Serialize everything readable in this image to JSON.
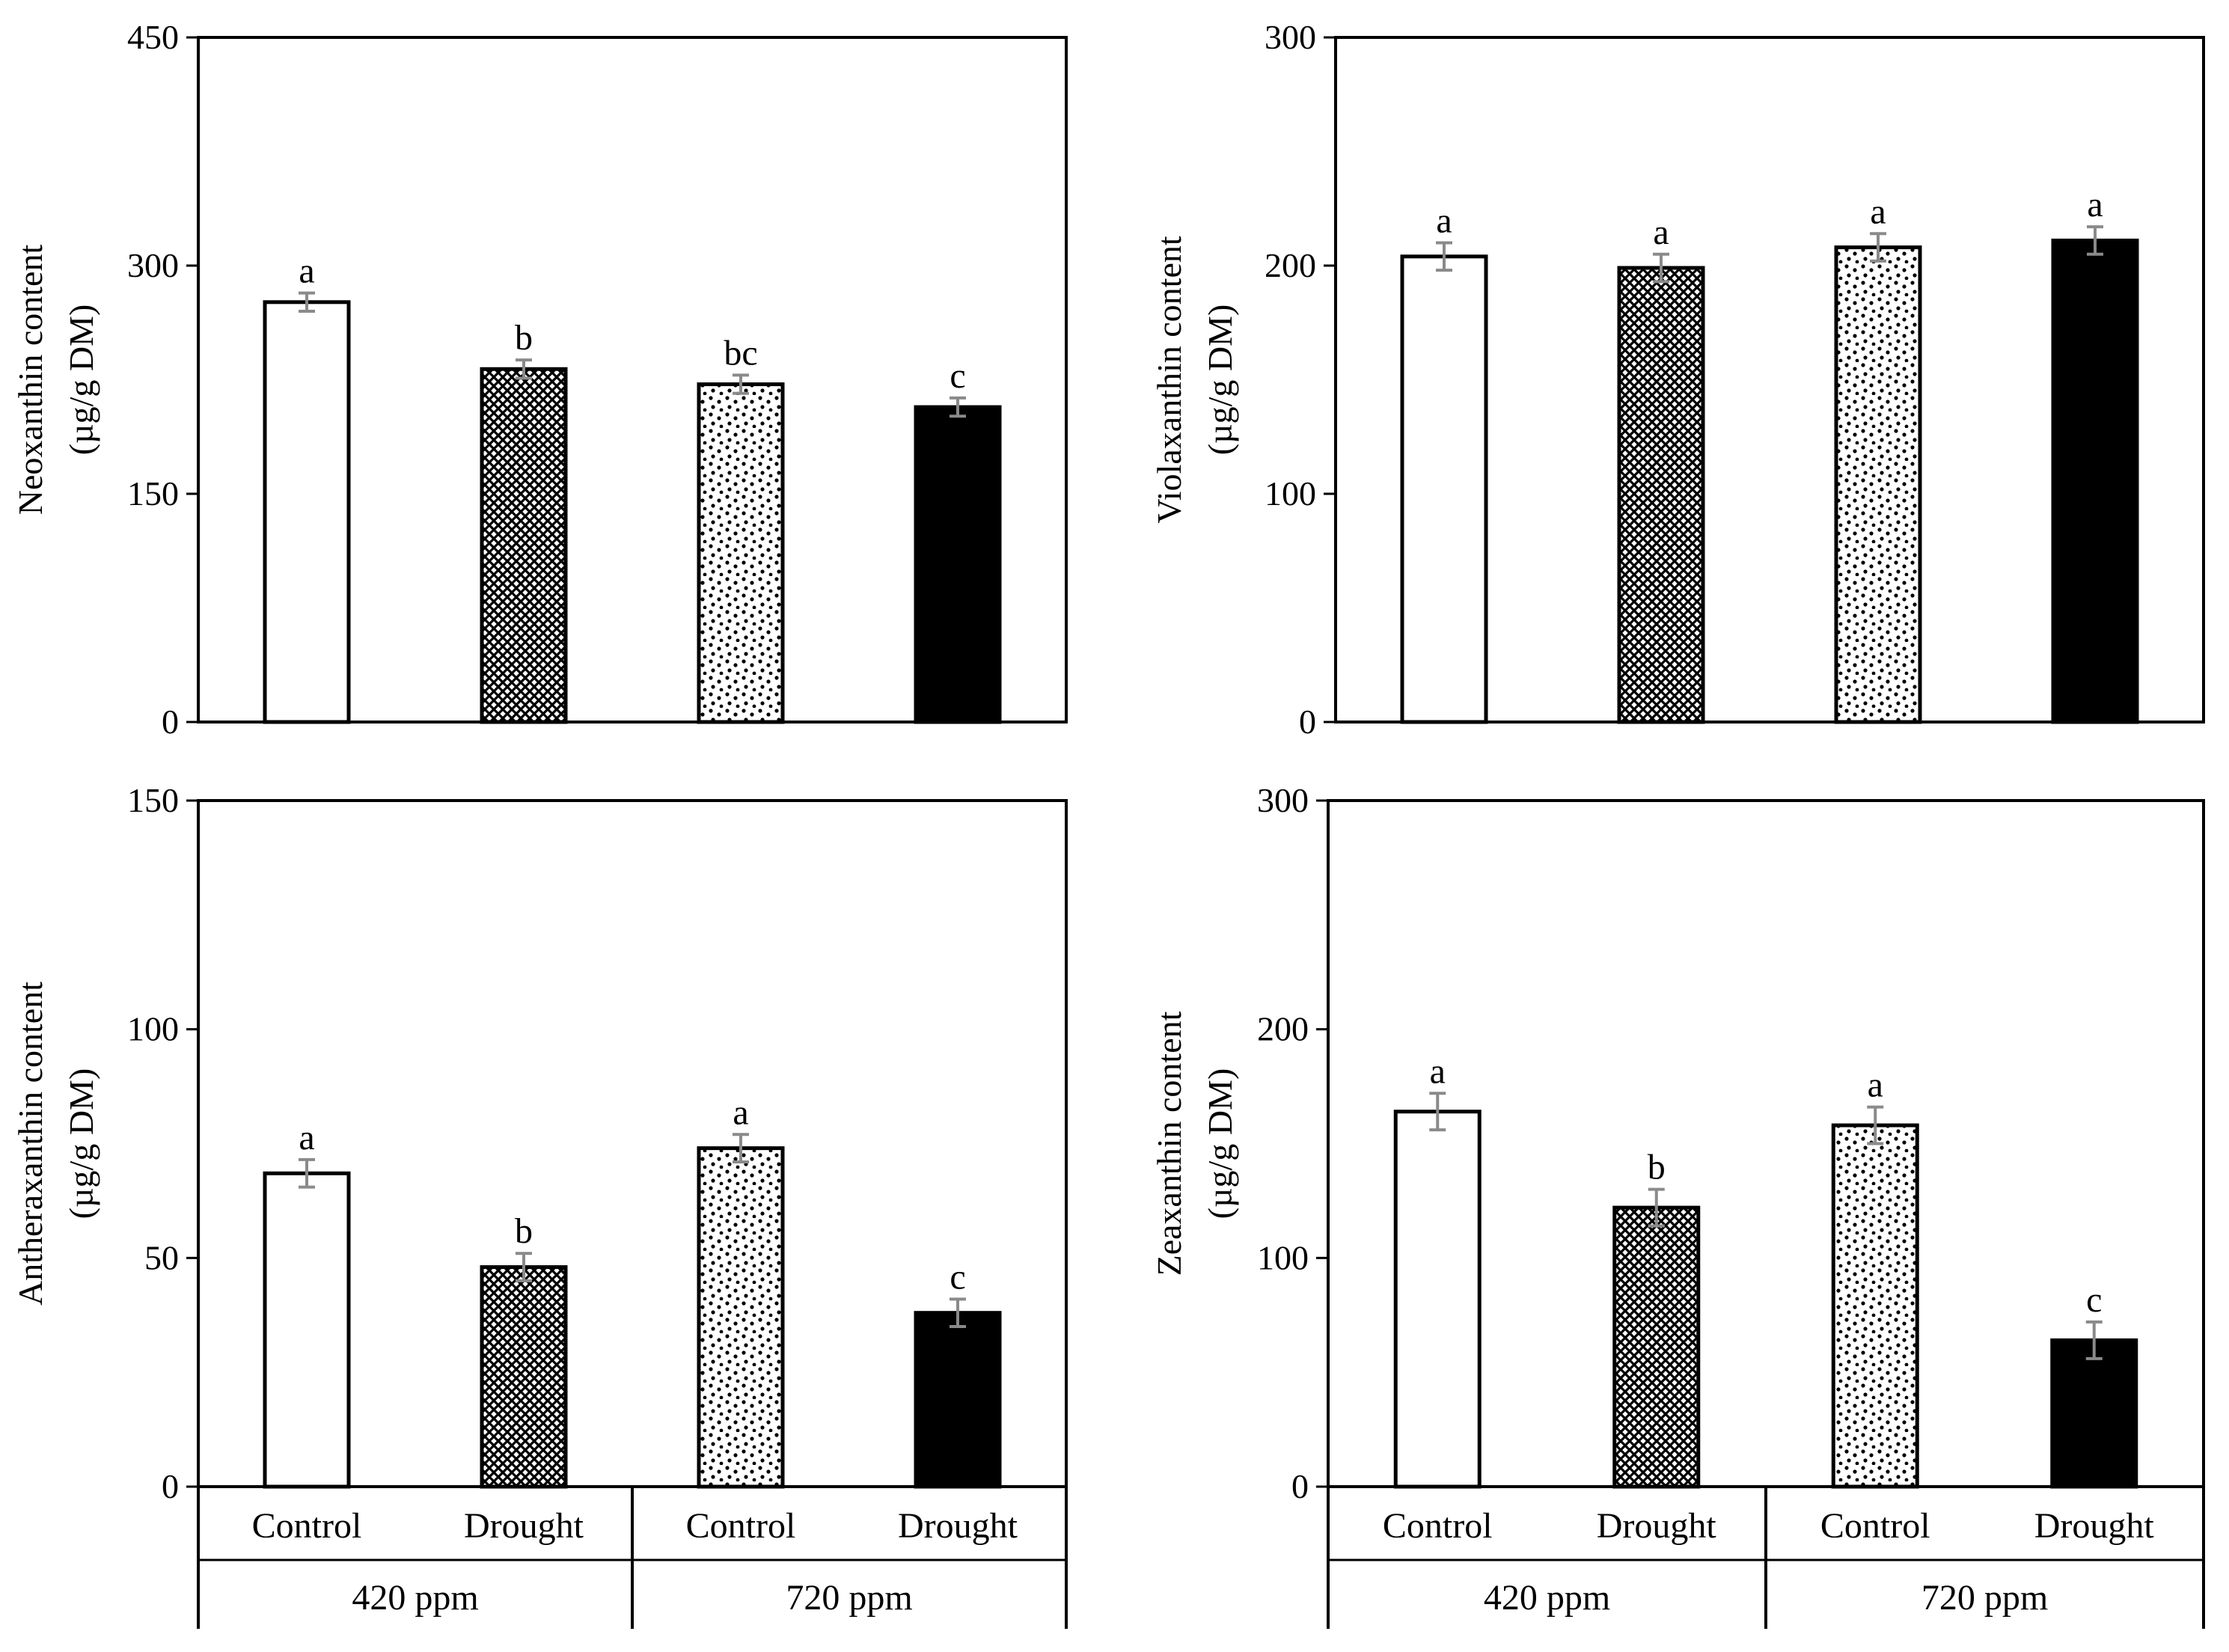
{
  "chart_data": [
    {
      "type": "bar",
      "ylabel_line1": "Neoxanthin content",
      "ylabel_line2": "(µg/g DM)",
      "ylim": [
        0,
        450
      ],
      "yticks": [
        0,
        150,
        300,
        450
      ],
      "categories": [
        "Control",
        "Drought",
        "Control",
        "Drought"
      ],
      "groups": [
        "420 ppm",
        "720 ppm"
      ],
      "values": [
        276,
        232,
        222,
        207
      ],
      "errors": [
        6,
        6,
        6,
        6
      ],
      "letters": [
        "a",
        "b",
        "bc",
        "c"
      ],
      "show_xlabels": false
    },
    {
      "type": "bar",
      "ylabel_line1": "Violaxanthin content",
      "ylabel_line2": "(µg/g DM)",
      "ylim": [
        0,
        300
      ],
      "yticks": [
        0,
        100,
        200,
        300
      ],
      "categories": [
        "Control",
        "Drought",
        "Control",
        "Drought"
      ],
      "groups": [
        "420 ppm",
        "720 ppm"
      ],
      "values": [
        204,
        199,
        208,
        211
      ],
      "errors": [
        6,
        6,
        6,
        6
      ],
      "letters": [
        "a",
        "a",
        "a",
        "a"
      ],
      "show_xlabels": false
    },
    {
      "type": "bar",
      "ylabel_line1": "Antheraxanthin content",
      "ylabel_line2": "(µg/g DM)",
      "ylim": [
        0,
        150
      ],
      "yticks": [
        0,
        50,
        100,
        150
      ],
      "categories": [
        "Control",
        "Drought",
        "Control",
        "Drought"
      ],
      "groups": [
        "420 ppm",
        "720 ppm"
      ],
      "values": [
        68.5,
        48,
        74,
        38
      ],
      "errors": [
        3,
        3,
        3,
        3
      ],
      "letters": [
        "a",
        "b",
        "a",
        "c"
      ],
      "show_xlabels": true
    },
    {
      "type": "bar",
      "ylabel_line1": "Zeaxanthin content",
      "ylabel_line2": "(µg/g DM)",
      "ylim": [
        0,
        300
      ],
      "yticks": [
        0,
        100,
        200,
        300
      ],
      "categories": [
        "Control",
        "Drought",
        "Control",
        "Drought"
      ],
      "groups": [
        "420 ppm",
        "720 ppm"
      ],
      "values": [
        164,
        122,
        158,
        64
      ],
      "errors": [
        8,
        8,
        8,
        8
      ],
      "letters": [
        "a",
        "b",
        "a",
        "c"
      ],
      "show_xlabels": true
    }
  ],
  "bar_styles": [
    "open-white",
    "dense-diamond-hatch",
    "sparse-dot-pattern",
    "solid-black"
  ]
}
